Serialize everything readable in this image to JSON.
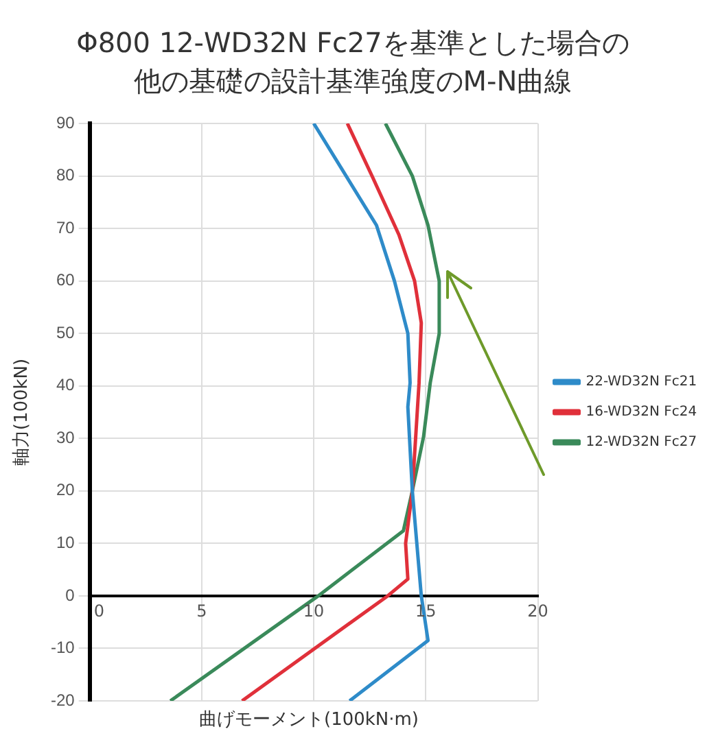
{
  "chart_data": {
    "type": "line",
    "title": "Φ800 12-WD32N Fc27を基準とした場合の他の基礎の設計基準強度のM-N曲線",
    "xlabel": "曲げモーメント(100kN·m)",
    "ylabel": "軸力(100kN)",
    "xlim": [
      0,
      20
    ],
    "xticks": [
      0,
      5,
      10,
      15,
      20
    ],
    "ylim": [
      -20,
      90
    ],
    "yticks": [
      -20,
      -10,
      0,
      10,
      20,
      30,
      40,
      50,
      60,
      70,
      80,
      90
    ],
    "grid": true,
    "legend": "right",
    "marker": "none",
    "line_style": "solid",
    "series": [
      {
        "name": "22-WD32N Fc21",
        "color": "#2e8bc9",
        "x": [
          11.6,
          15.1,
          14.8,
          14.4,
          14.2,
          14.3,
          14.2,
          13.6,
          12.8,
          10.0
        ],
        "values": [
          -20,
          -8.5,
          0,
          20,
          36,
          40.6,
          50,
          60,
          70.6,
          90
        ]
      },
      {
        "name": "16-WD32N Fc24",
        "color": "#e0303a",
        "x": [
          6.8,
          13.3,
          14.2,
          14.1,
          14.4,
          14.7,
          14.8,
          14.5,
          13.8,
          12.6,
          11.5
        ],
        "values": [
          -20,
          0,
          3.2,
          10,
          20,
          40.6,
          52,
          60,
          68.8,
          80,
          90
        ]
      },
      {
        "name": "12-WD32N Fc27",
        "color": "#3a8a5a",
        "x": [
          3.6,
          10.2,
          14.0,
          14.4,
          14.9,
          15.2,
          15.6,
          15.6,
          15.1,
          14.4,
          13.2
        ],
        "values": [
          -20,
          0,
          12.4,
          20,
          30.3,
          40.6,
          50,
          60,
          70.6,
          80,
          90
        ]
      }
    ]
  }
}
